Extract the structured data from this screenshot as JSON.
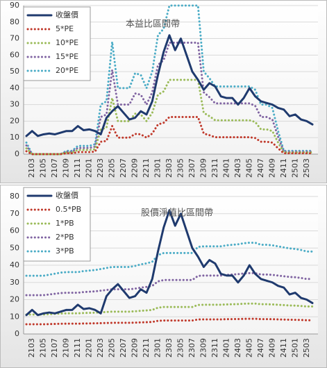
{
  "chart_data": [
    {
      "type": "line",
      "title": "本益比區間帶",
      "categories": [
        null,
        "2103",
        null,
        "2105",
        null,
        "2107",
        null,
        "2109",
        null,
        "2111",
        null,
        "2201",
        null,
        "2203",
        null,
        "2205",
        null,
        "2207",
        null,
        "2209",
        null,
        "2211",
        null,
        "2301",
        null,
        "2303",
        null,
        "2305",
        null,
        "2307",
        null,
        "2309",
        null,
        "2311",
        null,
        "2401",
        null,
        "2403",
        null,
        "2405",
        null,
        "2407",
        null,
        "2409",
        null,
        "2411",
        null,
        "2501",
        null,
        "2503",
        null
      ],
      "series": [
        {
          "name": "收盤價",
          "color": "#1f3a6e",
          "values": [
            11,
            14,
            11,
            12,
            12.5,
            12,
            13,
            14,
            14,
            17,
            14.5,
            15,
            14,
            12,
            22,
            26,
            29,
            25,
            21,
            22,
            26,
            24,
            32,
            48,
            62,
            72,
            63,
            70,
            60,
            50,
            45,
            39,
            43,
            41,
            35,
            34,
            34,
            30,
            34,
            40,
            35,
            32,
            31,
            30,
            28,
            27,
            23,
            24,
            21,
            20,
            18
          ]
        },
        {
          "name": "5*PE",
          "color": "#c0392b",
          "values": [
            1.75,
            0,
            0,
            0,
            0,
            0,
            0,
            0.5,
            0.5,
            1.25,
            1.25,
            1.25,
            1.5,
            7.5,
            8,
            17,
            10,
            10,
            10,
            12.25,
            12,
            10,
            12.5,
            18,
            19,
            22.5,
            22.5,
            22.5,
            22.5,
            22.5,
            22.5,
            12.5,
            11.5,
            10.25,
            10.25,
            10.25,
            10.25,
            10.25,
            10.25,
            10.25,
            9.75,
            7.5,
            7.5,
            7,
            3.5,
            0.5,
            0.5,
            0.5,
            0.5,
            0.5,
            0.5
          ]
        },
        {
          "name": "10*PE",
          "color": "#9bbb59",
          "values": [
            3.5,
            0,
            0,
            0,
            0,
            0,
            0,
            1,
            1,
            2.5,
            2.5,
            2.5,
            3,
            15,
            16,
            34,
            20,
            20,
            20,
            24.5,
            24,
            20,
            25,
            36,
            38,
            45,
            45,
            45,
            45,
            45,
            45,
            25,
            23,
            20.5,
            20.5,
            20.5,
            20.5,
            20.5,
            20.5,
            20.5,
            19.5,
            15,
            15,
            14,
            7,
            1,
            1,
            1,
            1,
            1,
            1
          ]
        },
        {
          "name": "15*PE",
          "color": "#8064a2",
          "values": [
            5.25,
            0,
            0,
            0,
            0,
            0,
            0,
            1.5,
            1.5,
            3.75,
            3.75,
            3.75,
            4.5,
            22.5,
            24,
            51,
            30,
            30,
            30,
            36.75,
            36,
            30,
            37.5,
            54,
            57,
            67.5,
            67.5,
            67.5,
            67.5,
            67.5,
            67.5,
            37.5,
            34.5,
            30.75,
            30.75,
            30.75,
            30.75,
            30.75,
            30.75,
            30.75,
            29.25,
            22.5,
            22.5,
            21,
            10.5,
            1.5,
            1.5,
            1.5,
            1.5,
            1.5,
            1.5
          ]
        },
        {
          "name": "20*PE",
          "color": "#4bacc6",
          "values": [
            7,
            0,
            0,
            0,
            0,
            0,
            0,
            2,
            2,
            5,
            5,
            5,
            6,
            30,
            32,
            68,
            40,
            40,
            40,
            49,
            48,
            40,
            50,
            72,
            76,
            90,
            90,
            90,
            90,
            90,
            90,
            50,
            46,
            41,
            41,
            41,
            41,
            41,
            41,
            41,
            39,
            30,
            30,
            28,
            14,
            2,
            2,
            2,
            2,
            2,
            2
          ]
        }
      ],
      "ylim": [
        0,
        90
      ],
      "yticks": [
        0,
        10,
        20,
        30,
        40,
        50,
        60,
        70,
        80,
        90
      ],
      "grid": true,
      "legend": "upper left"
    },
    {
      "type": "line",
      "title": "股價淨值比區間帶",
      "categories": [
        null,
        "2103",
        null,
        "2105",
        null,
        "2107",
        null,
        "2109",
        null,
        "2111",
        null,
        "2201",
        null,
        "2203",
        null,
        "2205",
        null,
        "2207",
        null,
        "2209",
        null,
        "2211",
        null,
        "2301",
        null,
        "2303",
        null,
        "2305",
        null,
        "2307",
        null,
        "2309",
        null,
        "2311",
        null,
        "2401",
        null,
        "2403",
        null,
        "2405",
        null,
        "2407",
        null,
        "2409",
        null,
        "2411",
        null,
        "2501",
        null,
        "2503",
        null
      ],
      "series": [
        {
          "name": "收盤價",
          "color": "#1f3a6e",
          "values": [
            11,
            14,
            11,
            12,
            12.5,
            12,
            13,
            14,
            14,
            17,
            14.5,
            15,
            14,
            12,
            22,
            26,
            29,
            25,
            21,
            22,
            26,
            24,
            32,
            48,
            62,
            72,
            63,
            70,
            60,
            50,
            45,
            39,
            43,
            41,
            35,
            34,
            34,
            30,
            34,
            40,
            35,
            32,
            31,
            30,
            28,
            27,
            23,
            24,
            21,
            20,
            18
          ]
        },
        {
          "name": "0.5*PB",
          "color": "#c0392b",
          "values": [
            5.65,
            5.65,
            5.65,
            5.65,
            5.75,
            5.85,
            5.95,
            6,
            6,
            6,
            6.1,
            6.15,
            6.2,
            6.3,
            6.4,
            6.5,
            6.5,
            6.5,
            6.5,
            6.6,
            6.75,
            6.85,
            7,
            7.65,
            7.85,
            7.85,
            7.85,
            7.85,
            7.85,
            7.85,
            8.45,
            8.5,
            8.5,
            8.5,
            8.5,
            8.6,
            8.65,
            8.7,
            8.8,
            8.85,
            8.85,
            8.65,
            8.65,
            8.6,
            8.5,
            8.4,
            8.3,
            8.25,
            8.15,
            8,
            8
          ]
        },
        {
          "name": "1*PB",
          "color": "#9bbb59",
          "values": [
            11.3,
            11.3,
            11.3,
            11.3,
            11.5,
            11.7,
            11.9,
            12,
            12,
            12,
            12.2,
            12.3,
            12.4,
            12.6,
            12.8,
            13,
            13,
            13,
            13,
            13.2,
            13.5,
            13.7,
            14,
            15.3,
            15.7,
            15.7,
            15.7,
            15.7,
            15.7,
            15.7,
            16.9,
            17,
            17,
            17,
            17,
            17.2,
            17.3,
            17.4,
            17.6,
            17.7,
            17.7,
            17.3,
            17.3,
            17.2,
            17,
            16.8,
            16.6,
            16.5,
            16.3,
            16,
            16
          ]
        },
        {
          "name": "2*PB",
          "color": "#8064a2",
          "values": [
            22.6,
            22.6,
            22.6,
            22.6,
            23,
            23.4,
            23.8,
            24,
            24,
            24,
            24.4,
            24.6,
            24.8,
            25.2,
            25.6,
            26,
            26,
            26,
            26,
            26.4,
            27,
            27.4,
            28,
            30.6,
            31.4,
            31.4,
            31.4,
            31.4,
            31.4,
            31.4,
            33.8,
            34,
            34,
            34,
            34,
            34.4,
            34.6,
            34.8,
            35.2,
            35.4,
            35.4,
            34.6,
            34.6,
            34.4,
            34,
            33.6,
            33.2,
            33,
            32.6,
            32,
            32
          ]
        },
        {
          "name": "3*PB",
          "color": "#4bacc6",
          "values": [
            33.9,
            33.9,
            33.9,
            33.9,
            34.5,
            35.1,
            35.7,
            36,
            36,
            36,
            36.6,
            36.9,
            37.2,
            37.8,
            38.4,
            39,
            39,
            39,
            39,
            39.6,
            40.5,
            41.1,
            42,
            45.9,
            47.1,
            47.1,
            47.1,
            47.1,
            47.1,
            47.1,
            50.7,
            51,
            51,
            51,
            51,
            51.6,
            51.9,
            52.2,
            52.8,
            53.1,
            53.1,
            51.9,
            51.9,
            51.6,
            51,
            50.4,
            49.8,
            49.5,
            48.9,
            48,
            48
          ]
        }
      ],
      "ylim": [
        0,
        80
      ],
      "yticks": [
        0,
        10,
        20,
        30,
        40,
        50,
        60,
        70,
        80
      ],
      "grid": true,
      "legend": "upper left"
    }
  ]
}
